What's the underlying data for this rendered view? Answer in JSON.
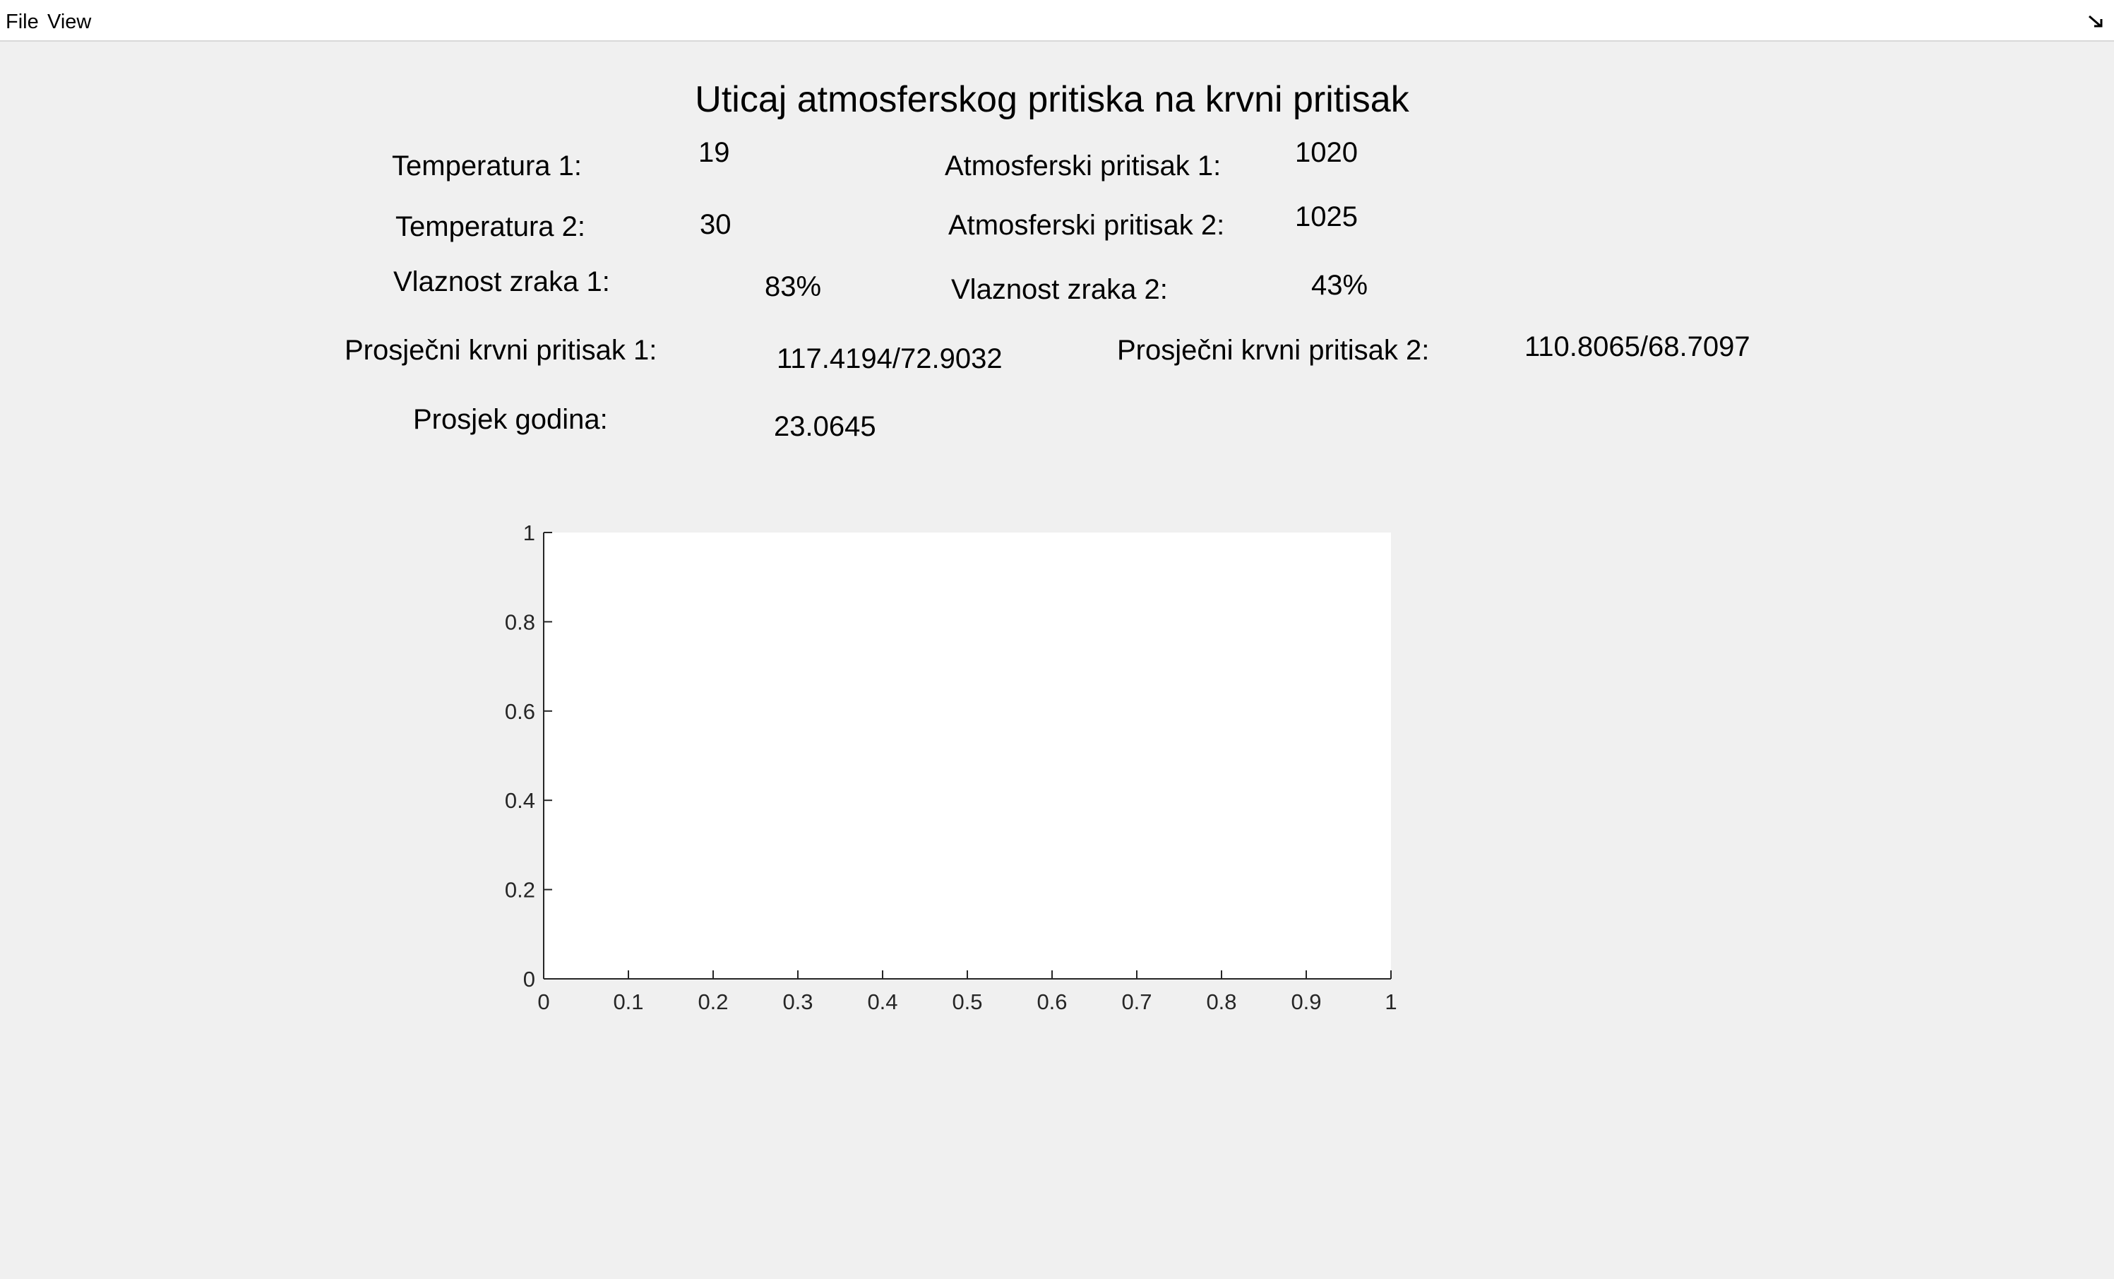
{
  "menu": {
    "file": "File",
    "view": "View"
  },
  "title": "Uticaj atmosferskog pritiska na krvni pritisak",
  "fields": {
    "temp1_label": "Temperatura 1:",
    "temp1_value": "19",
    "temp2_label": "Temperatura 2:",
    "temp2_value": "30",
    "atm1_label": "Atmosferski pritisak 1:",
    "atm1_value": "1020",
    "atm2_label": "Atmosferski pritisak 2:",
    "atm2_value": "1025",
    "hum1_label": "Vlaznost zraka 1:",
    "hum1_value": "83%",
    "hum2_label": "Vlaznost zraka 2:",
    "hum2_value": "43%",
    "bp1_label": "Prosječni krvni pritisak 1:",
    "bp1_value": "117.4194/72.9032",
    "bp2_label": "Prosječni krvni pritisak 2:",
    "bp2_value": "110.8065/68.7097",
    "age_label": "Prosjek godina:",
    "age_value": "23.0645"
  },
  "chart_data": {
    "type": "line",
    "title": "",
    "xlabel": "",
    "ylabel": "",
    "xlim": [
      0,
      1
    ],
    "ylim": [
      0,
      1
    ],
    "x_ticks": [
      "0",
      "0.1",
      "0.2",
      "0.3",
      "0.4",
      "0.5",
      "0.6",
      "0.7",
      "0.8",
      "0.9",
      "1"
    ],
    "y_ticks": [
      "0",
      "0.2",
      "0.4",
      "0.6",
      "0.8",
      "1"
    ],
    "series": [],
    "grid": false
  },
  "colors": {
    "background": "#f0f0f0",
    "axes_background": "#ffffff",
    "axis_color": "#262626"
  }
}
